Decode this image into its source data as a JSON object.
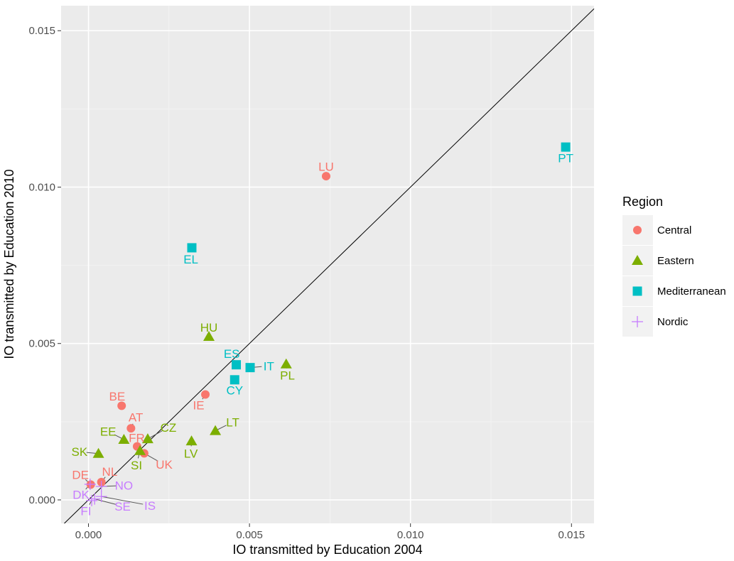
{
  "chart_data": {
    "type": "scatter",
    "xlabel": "IO transmitted by Education 2004",
    "ylabel": "IO transmitted by Education 2010",
    "xlim": [
      -0.00085,
      0.0157
    ],
    "ylim": [
      -0.00075,
      0.0158
    ],
    "x_ticks": [
      0.0,
      0.005,
      0.01,
      0.015
    ],
    "x_tick_labels": [
      "0.000",
      "0.005",
      "0.010",
      "0.015"
    ],
    "y_ticks": [
      0.0,
      0.005,
      0.01,
      0.015
    ],
    "y_tick_labels": [
      "0.000",
      "0.005",
      "0.010",
      "0.015"
    ],
    "reference_line": "y = x",
    "grid": true,
    "legend": {
      "title": "Region",
      "position": "right",
      "entries": [
        {
          "name": "Central",
          "shape": "circle",
          "color": "#F8766D"
        },
        {
          "name": "Eastern",
          "shape": "triangle",
          "color": "#7CAE00"
        },
        {
          "name": "Mediterranean",
          "shape": "square",
          "color": "#00BFC4"
        },
        {
          "name": "Nordic",
          "shape": "plus",
          "color": "#C77CFF"
        }
      ]
    },
    "points": [
      {
        "label": "LU",
        "region": "Central",
        "x": 0.00738,
        "y": 0.01035,
        "lx": 0.00738,
        "ly": 0.01066
      },
      {
        "label": "BE",
        "region": "Central",
        "x": 0.00103,
        "y": 0.00301,
        "lx": 0.00089,
        "ly": 0.00331
      },
      {
        "label": "AT",
        "region": "Central",
        "x": 0.00132,
        "y": 0.00229,
        "lx": 0.00147,
        "ly": 0.00264
      },
      {
        "label": "IE",
        "region": "Central",
        "x": 0.00363,
        "y": 0.00337,
        "lx": 0.00342,
        "ly": 0.00303
      },
      {
        "label": "FR",
        "region": "Central",
        "x": 0.00151,
        "y": 0.00171,
        "lx": 0.0015,
        "ly": 0.00199
      },
      {
        "label": "UK",
        "region": "Central",
        "x": 0.00173,
        "y": 0.00149,
        "lx": 0.00235,
        "ly": 0.00113
      },
      {
        "label": "NL",
        "region": "Central",
        "x": 0.0004,
        "y": 0.00057,
        "lx": 0.00066,
        "ly": 0.00091
      },
      {
        "label": "DE",
        "region": "Central",
        "x": 7e-05,
        "y": 0.00049,
        "lx": -0.00025,
        "ly": 0.00081
      },
      {
        "label": "HU",
        "region": "Eastern",
        "x": 0.00374,
        "y": 0.00522,
        "lx": 0.00374,
        "ly": 0.00552
      },
      {
        "label": "PL",
        "region": "Eastern",
        "x": 0.00614,
        "y": 0.00434,
        "lx": 0.00618,
        "ly": 0.00398
      },
      {
        "label": "LT",
        "region": "Eastern",
        "x": 0.00394,
        "y": 0.00221,
        "lx": 0.00448,
        "ly": 0.00249
      },
      {
        "label": "LV",
        "region": "Eastern",
        "x": 0.0032,
        "y": 0.00188,
        "lx": 0.00318,
        "ly": 0.00149
      },
      {
        "label": "EE",
        "region": "Eastern",
        "x": 0.0011,
        "y": 0.00193,
        "lx": 0.00061,
        "ly": 0.00219
      },
      {
        "label": "CZ",
        "region": "Eastern",
        "x": 0.00184,
        "y": 0.00195,
        "lx": 0.00248,
        "ly": 0.00232
      },
      {
        "label": "SK",
        "region": "Eastern",
        "x": 0.00031,
        "y": 0.00148,
        "lx": -0.00028,
        "ly": 0.00154
      },
      {
        "label": "SI",
        "region": "Eastern",
        "x": 0.0016,
        "y": 0.00157,
        "lx": 0.00149,
        "ly": 0.00111
      },
      {
        "label": "EL",
        "region": "Mediterranean",
        "x": 0.00321,
        "y": 0.00806,
        "lx": 0.00318,
        "ly": 0.0077
      },
      {
        "label": "PT",
        "region": "Mediterranean",
        "x": 0.01482,
        "y": 0.01128,
        "lx": 0.01482,
        "ly": 0.01093
      },
      {
        "label": "ES",
        "region": "Mediterranean",
        "x": 0.00459,
        "y": 0.00432,
        "lx": 0.00445,
        "ly": 0.00468
      },
      {
        "label": "IT",
        "region": "Mediterranean",
        "x": 0.00502,
        "y": 0.00423,
        "lx": 0.0056,
        "ly": 0.00428
      },
      {
        "label": "CY",
        "region": "Mediterranean",
        "x": 0.00454,
        "y": 0.00384,
        "lx": 0.00454,
        "ly": 0.00351
      },
      {
        "label": "NO",
        "region": "Nordic",
        "x": 0.0004,
        "y": 0.00043,
        "lx": 0.0011,
        "ly": 0.00046
      },
      {
        "label": "DK",
        "region": "Nordic",
        "x": 5e-05,
        "y": 0.0005,
        "lx": -0.00023,
        "ly": 0.00017
      },
      {
        "label": "FI",
        "region": "Nordic",
        "x": 0.0001,
        "y": -2e-05,
        "lx": -8e-05,
        "ly": -0.00035
      },
      {
        "label": "SE",
        "region": "Nordic",
        "x": 0.00019,
        "y": 3e-05,
        "lx": 0.00106,
        "ly": -0.0002
      },
      {
        "label": "IS",
        "region": "Nordic",
        "x": 0.0004,
        "y": 0.00011,
        "lx": 0.00191,
        "ly": -0.00018
      }
    ]
  }
}
